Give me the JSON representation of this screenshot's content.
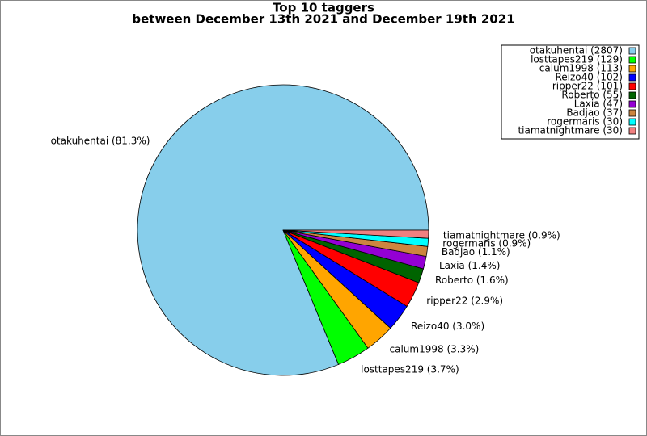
{
  "chart_data": {
    "type": "pie",
    "title": "Top 10 taggers",
    "subtitle": "between December 13th 2021 and December 19th 2021",
    "categories": [
      "otakuhentai",
      "losttapes219",
      "calum1998",
      "Reizo40",
      "ripper22",
      "Roberto",
      "Laxia",
      "Badjao",
      "rogermaris",
      "tiamatnightmare"
    ],
    "values": [
      81.3,
      3.7,
      3.3,
      3.0,
      2.9,
      1.6,
      1.4,
      1.1,
      0.9,
      0.9
    ],
    "value_labels": [
      "otakuhentai (81.3%)",
      "losttapes219 (3.7%)",
      "calum1998 (3.3%)",
      "Reizo40 (3.0%)",
      "ripper22 (2.9%)",
      "Roberto (1.6%)",
      "Laxia (1.4%)",
      "Badjao (1.1%)",
      "rogermaris (0.9%)",
      "tiamatnightmare (0.9%)"
    ],
    "legend_labels": [
      "otakuhentai (2807)",
      "losttapes219 (129)",
      "calum1998 (113)",
      "Reizo40 (102)",
      "ripper22 (101)",
      "Roberto (55)",
      "Laxia (47)",
      "Badjao (37)",
      "rogermaris (30)",
      "tiamatnightmare (30)"
    ],
    "colors": [
      "#87ceeb",
      "#00ff00",
      "#ffa500",
      "#0000ff",
      "#ff0000",
      "#006400",
      "#9400d3",
      "#cd853f",
      "#00ffff",
      "#f08080"
    ],
    "legend_position": "upper right"
  }
}
